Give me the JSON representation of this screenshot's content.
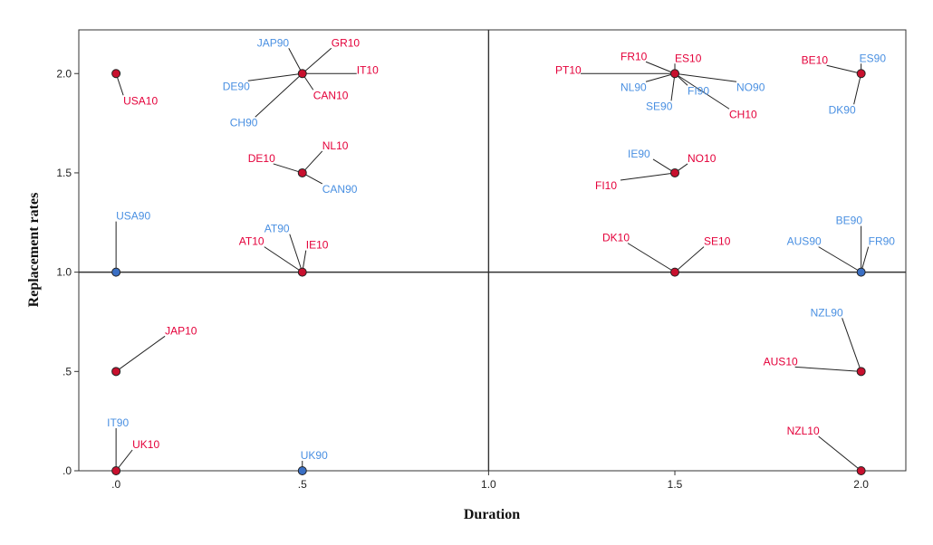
{
  "chart_data": {
    "type": "scatter",
    "xlabel": "Duration",
    "ylabel": "Replacement rates",
    "xlim": [
      -0.1,
      2.12
    ],
    "ylim": [
      0,
      2.22
    ],
    "x_ticks": [
      {
        "value": 0,
        "label": ".0"
      },
      {
        "value": 0.5,
        "label": ".5"
      },
      {
        "value": 1.0,
        "label": "1.0"
      },
      {
        "value": 1.5,
        "label": "1.5"
      },
      {
        "value": 2.0,
        "label": "2.0"
      }
    ],
    "y_ticks": [
      {
        "value": 0,
        "label": ".0"
      },
      {
        "value": 0.5,
        "label": ".5"
      },
      {
        "value": 1.0,
        "label": "1.0"
      },
      {
        "value": 1.5,
        "label": "1.5"
      },
      {
        "value": 2.0,
        "label": "2.0"
      }
    ],
    "reference_lines": {
      "x": 1.0,
      "y": 1.0
    },
    "grid": false,
    "colors": {
      "year10": "#e4003a",
      "year90": "#4a90e2",
      "marker10": "#c8102e",
      "marker90": "#3a6fc4"
    },
    "points": [
      {
        "x": 0,
        "y": 2.0,
        "marker": "10",
        "labels": [
          {
            "text": "USA10",
            "g": "10",
            "dx": 8,
            "dy": 34,
            "ax": "start"
          }
        ]
      },
      {
        "x": 0.5,
        "y": 2.0,
        "marker": "10",
        "labels": [
          {
            "text": "JAP90",
            "g": "90",
            "dx": -50,
            "dy": -30,
            "ax": "start"
          },
          {
            "text": "GR10",
            "g": "10",
            "dx": 32,
            "dy": -30,
            "ax": "start"
          },
          {
            "text": "IT10",
            "g": "10",
            "dx": 60,
            "dy": 0,
            "ax": "start"
          },
          {
            "text": "DE90",
            "g": "90",
            "dx": -88,
            "dy": 18,
            "ax": "start"
          },
          {
            "text": "CAN10",
            "g": "10",
            "dx": 12,
            "dy": 28,
            "ax": "start"
          },
          {
            "text": "CH90",
            "g": "90",
            "dx": -80,
            "dy": 58,
            "ax": "start"
          }
        ]
      },
      {
        "x": 0.5,
        "y": 1.5,
        "marker": "10",
        "labels": [
          {
            "text": "NL10",
            "g": "10",
            "dx": 22,
            "dy": -26,
            "ax": "start"
          },
          {
            "text": "DE10",
            "g": "10",
            "dx": -60,
            "dy": -12,
            "ax": "start"
          },
          {
            "text": "CAN90",
            "g": "90",
            "dx": 22,
            "dy": 22,
            "ax": "start"
          }
        ]
      },
      {
        "x": 0,
        "y": 1.0,
        "marker": "90",
        "labels": [
          {
            "text": "USA90",
            "g": "90",
            "dx": 0,
            "dy": -58,
            "ax": "start"
          }
        ]
      },
      {
        "x": 0.5,
        "y": 1.0,
        "marker": "10",
        "labels": [
          {
            "text": "AT90",
            "g": "90",
            "dx": -42,
            "dy": -44,
            "ax": "start"
          },
          {
            "text": "AT10",
            "g": "10",
            "dx": -70,
            "dy": -30,
            "ax": "start"
          },
          {
            "text": "IE10",
            "g": "10",
            "dx": 4,
            "dy": -26,
            "ax": "start"
          }
        ]
      },
      {
        "x": 0,
        "y": 0.5,
        "marker": "10",
        "labels": [
          {
            "text": "JAP10",
            "g": "10",
            "dx": 54,
            "dy": -41,
            "ax": "start"
          }
        ]
      },
      {
        "x": 0,
        "y": 0,
        "marker": "10",
        "labels": [
          {
            "text": "IT90",
            "g": "90",
            "dx": -10,
            "dy": -49,
            "ax": "start"
          },
          {
            "text": "UK10",
            "g": "10",
            "dx": 18,
            "dy": -25,
            "ax": "start"
          }
        ]
      },
      {
        "x": 0.5,
        "y": 0,
        "marker": "90",
        "labels": [
          {
            "text": "UK90",
            "g": "90",
            "dx": -2,
            "dy": -13,
            "ax": "start"
          }
        ]
      },
      {
        "x": 1.5,
        "y": 2.0,
        "marker": "10",
        "labels": [
          {
            "text": "PT10",
            "g": "10",
            "dx": -132,
            "dy": 0,
            "ax": "start"
          },
          {
            "text": "FR10",
            "g": "10",
            "dx": -60,
            "dy": -15,
            "ax": "start"
          },
          {
            "text": "ES10",
            "g": "10",
            "dx": 0,
            "dy": -13,
            "ax": "start"
          },
          {
            "text": "NL90",
            "g": "90",
            "dx": -60,
            "dy": 19,
            "ax": "start"
          },
          {
            "text": "FI90",
            "g": "90",
            "dx": 14,
            "dy": 23,
            "ax": "start"
          },
          {
            "text": "NO90",
            "g": "90",
            "dx": 68,
            "dy": 19,
            "ax": "start"
          },
          {
            "text": "SE90",
            "g": "90",
            "dx": -32,
            "dy": 40,
            "ax": "start"
          },
          {
            "text": "CH10",
            "g": "10",
            "dx": 60,
            "dy": 49,
            "ax": "start"
          }
        ]
      },
      {
        "x": 2.0,
        "y": 2.0,
        "marker": "10",
        "labels": [
          {
            "text": "BE10",
            "g": "10",
            "dx": -66,
            "dy": -11,
            "ax": "start"
          },
          {
            "text": "ES90",
            "g": "90",
            "dx": -2,
            "dy": -13,
            "ax": "start"
          },
          {
            "text": "DK90",
            "g": "90",
            "dx": -36,
            "dy": 44,
            "ax": "start"
          }
        ]
      },
      {
        "x": 1.5,
        "y": 1.5,
        "marker": "10",
        "labels": [
          {
            "text": "IE90",
            "g": "90",
            "dx": -52,
            "dy": -17,
            "ax": "start"
          },
          {
            "text": "NO10",
            "g": "10",
            "dx": 14,
            "dy": -12,
            "ax": "start"
          },
          {
            "text": "FI10",
            "g": "10",
            "dx": -88,
            "dy": 18,
            "ax": "start"
          }
        ]
      },
      {
        "x": 1.5,
        "y": 1.0,
        "marker": "10",
        "labels": [
          {
            "text": "DK10",
            "g": "10",
            "dx": -80,
            "dy": -34,
            "ax": "start"
          },
          {
            "text": "SE10",
            "g": "10",
            "dx": 32,
            "dy": -30,
            "ax": "start"
          }
        ]
      },
      {
        "x": 2.0,
        "y": 1.0,
        "marker": "90",
        "labels": [
          {
            "text": "BE90",
            "g": "90",
            "dx": -28,
            "dy": -53,
            "ax": "start"
          },
          {
            "text": "AUS90",
            "g": "90",
            "dx": -82,
            "dy": -30,
            "ax": "start"
          },
          {
            "text": "FR90",
            "g": "90",
            "dx": 8,
            "dy": -30,
            "ax": "start"
          }
        ]
      },
      {
        "x": 2.0,
        "y": 0.5,
        "marker": "10",
        "labels": [
          {
            "text": "NZL90",
            "g": "90",
            "dx": -56,
            "dy": -61,
            "ax": "start"
          },
          {
            "text": "AUS10",
            "g": "10",
            "dx": -108,
            "dy": -7,
            "ax": "start"
          }
        ]
      },
      {
        "x": 2.0,
        "y": 0,
        "marker": "10",
        "labels": [
          {
            "text": "NZL10",
            "g": "10",
            "dx": -82,
            "dy": -40,
            "ax": "start"
          }
        ]
      }
    ]
  }
}
